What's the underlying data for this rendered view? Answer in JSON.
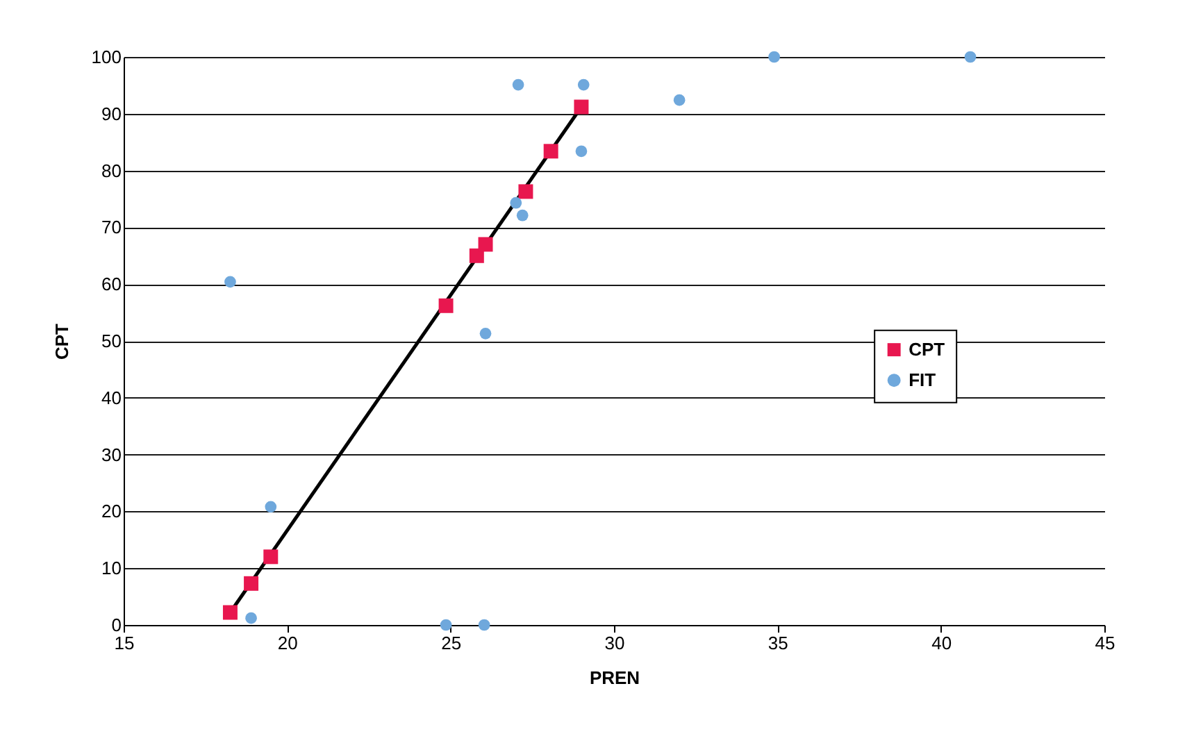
{
  "chart_data": {
    "type": "scatter",
    "xlabel": "PREN",
    "ylabel": "CPT",
    "xlim": [
      15,
      45
    ],
    "xticks": [
      15,
      20,
      25,
      30,
      35,
      40,
      45
    ],
    "ylim": [
      0,
      100
    ],
    "yticks": [
      0,
      10,
      20,
      30,
      40,
      50,
      60,
      70,
      80,
      90,
      100
    ],
    "grid": "y",
    "legend": "right",
    "series": [
      {
        "name": "CPT",
        "color": "#e8174f",
        "marker": "square",
        "x": [
          18.26,
          18.9,
          19.5,
          24.86,
          25.8,
          26.07,
          27.3,
          28.07,
          29.0
        ],
        "values": [
          2.2,
          7.3,
          12,
          56.2,
          65,
          67,
          76.3,
          83.4,
          91.2
        ]
      },
      {
        "name": "FIT",
        "color": "#6fa8dc",
        "marker": "circle",
        "x": [
          18.26,
          19.5,
          18.9,
          24.86,
          26.03,
          27.07,
          29.07,
          29.0,
          27.2,
          26.07,
          32.0,
          34.9,
          40.9,
          27.0
        ],
        "values": [
          60.4,
          20.8,
          1.2,
          0,
          0,
          95.1,
          95.1,
          83.4,
          72.1,
          51.3,
          92.4,
          100,
          100,
          74.3
        ]
      },
      {
        "type": "line",
        "color": "#000000",
        "line_style": "solid",
        "x": [
          18.26,
          29.0
        ],
        "values": [
          2.2,
          91.2
        ]
      }
    ]
  }
}
